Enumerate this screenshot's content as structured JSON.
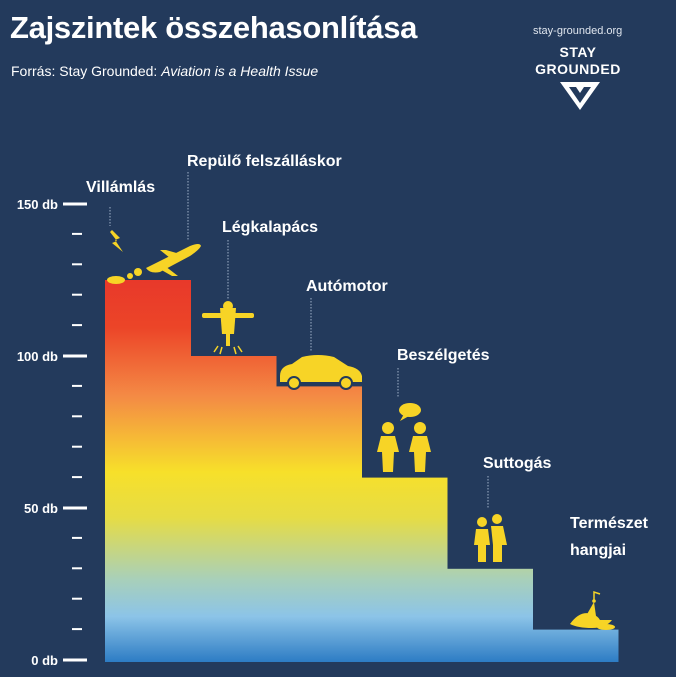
{
  "header": {
    "title": "Zajszintek összehasonlítása",
    "source_prefix": "Forrás: Stay Grounded: ",
    "source_title": "Aviation is a Health Issue"
  },
  "logo": {
    "url": "stay-grounded.org",
    "line1": "STAY",
    "line2": "GROUNDED"
  },
  "colors": {
    "background": "#233a5c",
    "icon": "#f7d426",
    "red": "#e8392a",
    "orange": "#f48a45",
    "yellow": "#f7e02a",
    "lightblue": "#8cc4e8",
    "blue": "#2d7cc4"
  },
  "chart_data": {
    "type": "bar",
    "title": "Zajszintek összehasonlítása",
    "ylabel": "db",
    "ylim": [
      0,
      150
    ],
    "yticks": [
      {
        "value": 0,
        "label": "0 db"
      },
      {
        "value": 50,
        "label": "50 db"
      },
      {
        "value": 100,
        "label": "100 db"
      },
      {
        "value": 150,
        "label": "150 db"
      }
    ],
    "minor_tick_step": 10,
    "categories": [
      "Villámlás",
      "Repülő felszálláskor",
      "Légkalapács",
      "Autómotor",
      "Beszélgetés",
      "Suttogás",
      "Természet hangjai"
    ],
    "steps": [
      {
        "labels": [
          "Villámlás",
          "Repülő felszálláskor"
        ],
        "icons": [
          "lightning-icon",
          "airplane-icon"
        ],
        "value": 125
      },
      {
        "labels": [
          "Légkalapács"
        ],
        "icons": [
          "jackhammer-icon"
        ],
        "value": 100
      },
      {
        "labels": [
          "Autómotor"
        ],
        "icons": [
          "car-icon"
        ],
        "value": 90
      },
      {
        "labels": [
          "Beszélgetés"
        ],
        "icons": [
          "people-talking-icon"
        ],
        "value": 60
      },
      {
        "labels": [
          "Suttogás"
        ],
        "icons": [
          "people-whispering-icon"
        ],
        "value": 30
      },
      {
        "labels": [
          "Természet hangjai"
        ],
        "icons": [
          "bird-icon"
        ],
        "value": 10
      }
    ]
  }
}
